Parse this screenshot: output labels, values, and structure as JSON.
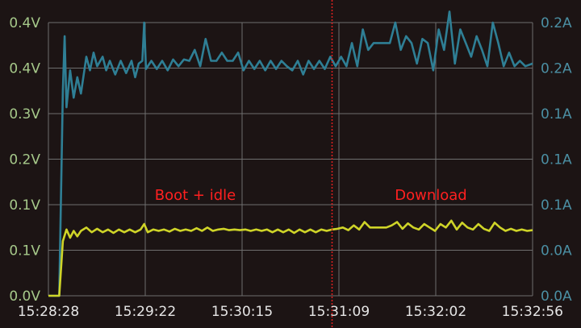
{
  "chart_data": {
    "type": "line",
    "title": "",
    "x_ticks": [
      "15:28:28",
      "15:29:22",
      "15:30:15",
      "15:31:09",
      "15:32:02",
      "15:32:56"
    ],
    "x_range": [
      "15:28:28",
      "15:32:56"
    ],
    "y_left": {
      "ticks": [
        "0.0V",
        "0.1V",
        "0.1V",
        "0.2V",
        "0.3V",
        "0.4V",
        "0.4V"
      ],
      "range": [
        0,
        0.4
      ],
      "color": "#a6c98a"
    },
    "y_right": {
      "ticks": [
        "0.0A",
        "0.0A",
        "0.1A",
        "0.1A",
        "0.1A",
        "0.2A",
        "0.2A"
      ],
      "range": [
        0,
        0.2
      ],
      "color": "#4b8fa3"
    },
    "grid": true,
    "marker": {
      "time": "15:31:05",
      "color": "#e02020",
      "style": "dotted"
    },
    "annotations": [
      {
        "text": "Boot + idle",
        "color": "#ff2020"
      },
      {
        "text": "Download",
        "color": "#ff2020"
      }
    ],
    "series": [
      {
        "axis": "right",
        "color": "#2f7f95",
        "points": [
          [
            "15:28:28",
            0.0
          ],
          [
            "15:28:34",
            0.0
          ],
          [
            "15:28:36",
            0.15
          ],
          [
            "15:28:37",
            0.19
          ],
          [
            "15:28:38",
            0.138
          ],
          [
            "15:28:40",
            0.165
          ],
          [
            "15:28:42",
            0.145
          ],
          [
            "15:28:44",
            0.16
          ],
          [
            "15:28:46",
            0.148
          ],
          [
            "15:28:49",
            0.175
          ],
          [
            "15:28:51",
            0.165
          ],
          [
            "15:28:53",
            0.178
          ],
          [
            "15:28:55",
            0.168
          ],
          [
            "15:28:58",
            0.175
          ],
          [
            "15:29:00",
            0.165
          ],
          [
            "15:29:02",
            0.172
          ],
          [
            "15:29:05",
            0.162
          ],
          [
            "15:29:08",
            0.172
          ],
          [
            "15:29:11",
            0.163
          ],
          [
            "15:29:14",
            0.172
          ],
          [
            "15:29:16",
            0.16
          ],
          [
            "15:29:18",
            0.17
          ],
          [
            "15:29:20",
            0.172
          ],
          [
            "15:29:21",
            0.2
          ],
          [
            "15:29:22",
            0.166
          ],
          [
            "15:29:25",
            0.172
          ],
          [
            "15:29:28",
            0.166
          ],
          [
            "15:29:31",
            0.172
          ],
          [
            "15:29:34",
            0.165
          ],
          [
            "15:29:37",
            0.173
          ],
          [
            "15:29:40",
            0.168
          ],
          [
            "15:29:43",
            0.173
          ],
          [
            "15:29:46",
            0.172
          ],
          [
            "15:29:49",
            0.18
          ],
          [
            "15:29:52",
            0.168
          ],
          [
            "15:29:55",
            0.188
          ],
          [
            "15:29:58",
            0.172
          ],
          [
            "15:30:01",
            0.172
          ],
          [
            "15:30:04",
            0.178
          ],
          [
            "15:30:07",
            0.172
          ],
          [
            "15:30:10",
            0.172
          ],
          [
            "15:30:13",
            0.178
          ],
          [
            "15:30:16",
            0.165
          ],
          [
            "15:30:19",
            0.172
          ],
          [
            "15:30:22",
            0.166
          ],
          [
            "15:30:25",
            0.172
          ],
          [
            "15:30:28",
            0.165
          ],
          [
            "15:30:31",
            0.172
          ],
          [
            "15:30:34",
            0.166
          ],
          [
            "15:30:37",
            0.172
          ],
          [
            "15:30:40",
            0.168
          ],
          [
            "15:30:43",
            0.165
          ],
          [
            "15:30:46",
            0.172
          ],
          [
            "15:30:49",
            0.162
          ],
          [
            "15:30:52",
            0.172
          ],
          [
            "15:30:55",
            0.166
          ],
          [
            "15:30:58",
            0.172
          ],
          [
            "15:31:01",
            0.166
          ],
          [
            "15:31:04",
            0.175
          ],
          [
            "15:31:07",
            0.168
          ],
          [
            "15:31:10",
            0.175
          ],
          [
            "15:31:13",
            0.168
          ],
          [
            "15:31:16",
            0.185
          ],
          [
            "15:31:19",
            0.168
          ],
          [
            "15:31:22",
            0.195
          ],
          [
            "15:31:25",
            0.18
          ],
          [
            "15:31:28",
            0.185
          ],
          [
            "15:31:31",
            0.185
          ],
          [
            "15:31:34",
            0.185
          ],
          [
            "15:31:37",
            0.185
          ],
          [
            "15:31:40",
            0.2
          ],
          [
            "15:31:43",
            0.18
          ],
          [
            "15:31:46",
            0.19
          ],
          [
            "15:31:49",
            0.185
          ],
          [
            "15:31:52",
            0.17
          ],
          [
            "15:31:55",
            0.188
          ],
          [
            "15:31:58",
            0.185
          ],
          [
            "15:32:01",
            0.165
          ],
          [
            "15:32:04",
            0.195
          ],
          [
            "15:32:07",
            0.18
          ],
          [
            "15:32:10",
            0.208
          ],
          [
            "15:32:13",
            0.17
          ],
          [
            "15:32:16",
            0.195
          ],
          [
            "15:32:19",
            0.185
          ],
          [
            "15:32:22",
            0.175
          ],
          [
            "15:32:25",
            0.19
          ],
          [
            "15:32:28",
            0.18
          ],
          [
            "15:32:31",
            0.168
          ],
          [
            "15:32:34",
            0.2
          ],
          [
            "15:32:37",
            0.185
          ],
          [
            "15:32:40",
            0.168
          ],
          [
            "15:32:43",
            0.178
          ],
          [
            "15:32:46",
            0.168
          ],
          [
            "15:32:49",
            0.172
          ],
          [
            "15:32:52",
            0.168
          ],
          [
            "15:32:56",
            0.17
          ]
        ]
      },
      {
        "axis": "left",
        "color": "#cfd428",
        "points": [
          [
            "15:28:28",
            0.0
          ],
          [
            "15:28:34",
            0.0
          ],
          [
            "15:28:36",
            0.08
          ],
          [
            "15:28:38",
            0.097
          ],
          [
            "15:28:40",
            0.085
          ],
          [
            "15:28:42",
            0.095
          ],
          [
            "15:28:44",
            0.087
          ],
          [
            "15:28:46",
            0.095
          ],
          [
            "15:28:49",
            0.1
          ],
          [
            "15:28:52",
            0.093
          ],
          [
            "15:28:55",
            0.098
          ],
          [
            "15:28:58",
            0.093
          ],
          [
            "15:29:01",
            0.097
          ],
          [
            "15:29:04",
            0.092
          ],
          [
            "15:29:07",
            0.097
          ],
          [
            "15:29:10",
            0.093
          ],
          [
            "15:29:13",
            0.097
          ],
          [
            "15:29:16",
            0.093
          ],
          [
            "15:29:19",
            0.097
          ],
          [
            "15:29:21",
            0.105
          ],
          [
            "15:29:23",
            0.093
          ],
          [
            "15:29:26",
            0.097
          ],
          [
            "15:29:29",
            0.095
          ],
          [
            "15:29:32",
            0.097
          ],
          [
            "15:29:35",
            0.094
          ],
          [
            "15:29:38",
            0.098
          ],
          [
            "15:29:41",
            0.095
          ],
          [
            "15:29:44",
            0.097
          ],
          [
            "15:29:47",
            0.095
          ],
          [
            "15:29:50",
            0.099
          ],
          [
            "15:29:53",
            0.095
          ],
          [
            "15:29:56",
            0.1
          ],
          [
            "15:29:59",
            0.095
          ],
          [
            "15:30:02",
            0.097
          ],
          [
            "15:30:05",
            0.098
          ],
          [
            "15:30:08",
            0.096
          ],
          [
            "15:30:11",
            0.097
          ],
          [
            "15:30:14",
            0.096
          ],
          [
            "15:30:17",
            0.097
          ],
          [
            "15:30:20",
            0.095
          ],
          [
            "15:30:23",
            0.097
          ],
          [
            "15:30:26",
            0.095
          ],
          [
            "15:30:29",
            0.097
          ],
          [
            "15:30:32",
            0.093
          ],
          [
            "15:30:35",
            0.097
          ],
          [
            "15:30:38",
            0.093
          ],
          [
            "15:30:41",
            0.097
          ],
          [
            "15:30:44",
            0.092
          ],
          [
            "15:30:47",
            0.097
          ],
          [
            "15:30:50",
            0.093
          ],
          [
            "15:30:53",
            0.097
          ],
          [
            "15:30:56",
            0.093
          ],
          [
            "15:30:59",
            0.097
          ],
          [
            "15:31:02",
            0.095
          ],
          [
            "15:31:05",
            0.097
          ],
          [
            "15:31:08",
            0.098
          ],
          [
            "15:31:11",
            0.1
          ],
          [
            "15:31:14",
            0.096
          ],
          [
            "15:31:17",
            0.103
          ],
          [
            "15:31:20",
            0.097
          ],
          [
            "15:31:23",
            0.108
          ],
          [
            "15:31:26",
            0.1
          ],
          [
            "15:31:29",
            0.1
          ],
          [
            "15:31:32",
            0.1
          ],
          [
            "15:31:35",
            0.1
          ],
          [
            "15:31:38",
            0.103
          ],
          [
            "15:31:41",
            0.108
          ],
          [
            "15:31:44",
            0.098
          ],
          [
            "15:31:47",
            0.106
          ],
          [
            "15:31:50",
            0.1
          ],
          [
            "15:31:53",
            0.097
          ],
          [
            "15:31:56",
            0.105
          ],
          [
            "15:31:59",
            0.1
          ],
          [
            "15:32:02",
            0.095
          ],
          [
            "15:32:05",
            0.105
          ],
          [
            "15:32:08",
            0.1
          ],
          [
            "15:32:11",
            0.11
          ],
          [
            "15:32:14",
            0.097
          ],
          [
            "15:32:17",
            0.107
          ],
          [
            "15:32:20",
            0.1
          ],
          [
            "15:32:23",
            0.097
          ],
          [
            "15:32:26",
            0.105
          ],
          [
            "15:32:29",
            0.098
          ],
          [
            "15:32:32",
            0.095
          ],
          [
            "15:32:35",
            0.107
          ],
          [
            "15:32:38",
            0.1
          ],
          [
            "15:32:41",
            0.095
          ],
          [
            "15:32:44",
            0.098
          ],
          [
            "15:32:47",
            0.095
          ],
          [
            "15:32:50",
            0.097
          ],
          [
            "15:32:53",
            0.095
          ],
          [
            "15:32:56",
            0.096
          ]
        ]
      }
    ]
  }
}
